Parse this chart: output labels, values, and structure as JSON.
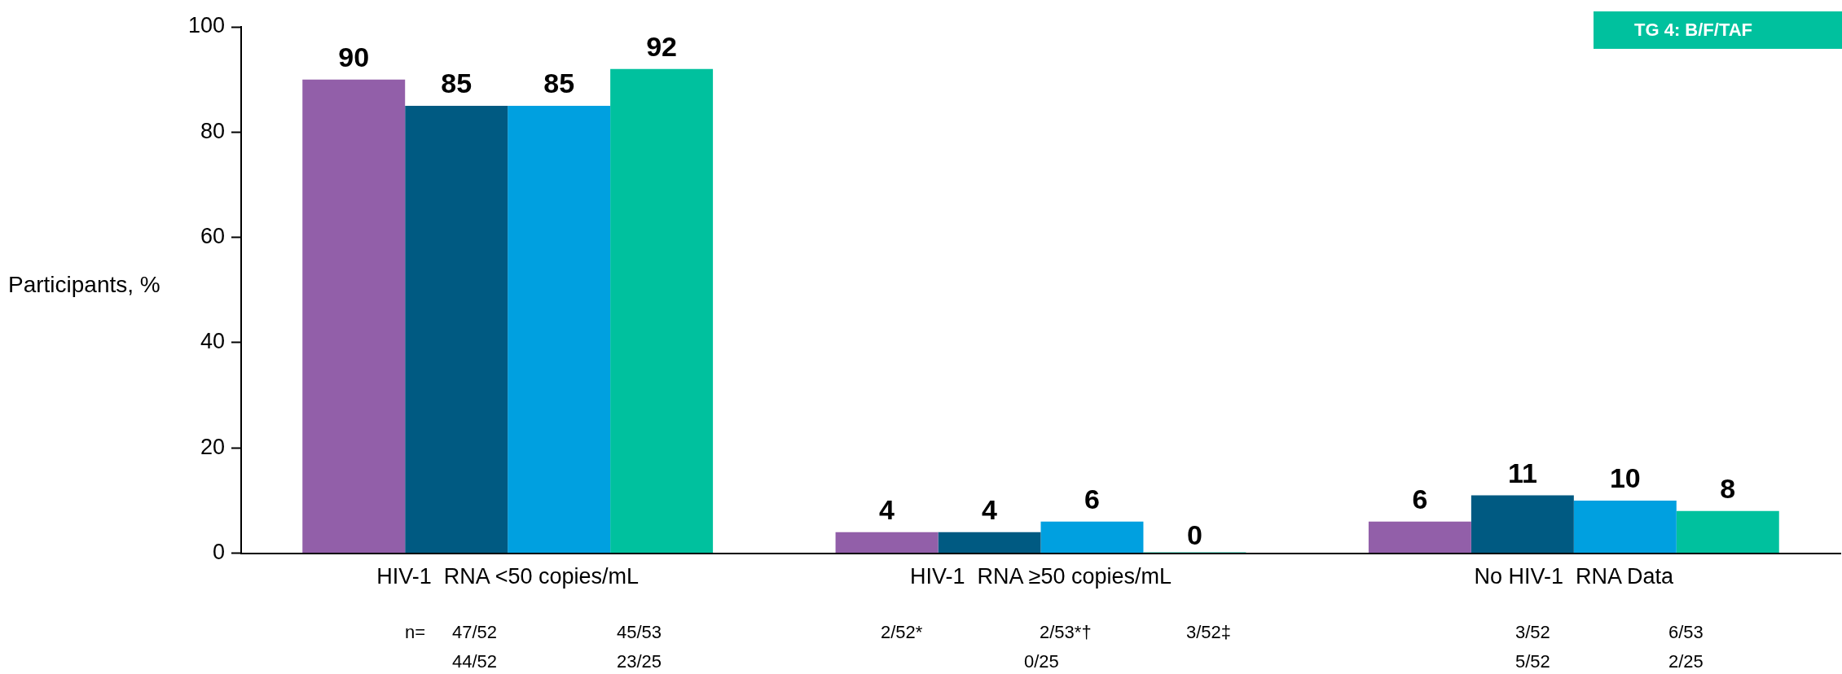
{
  "chart_data": {
    "type": "bar",
    "ylabel": "Participants, %",
    "categories": [
      "HIV-1  RNA <50 copies/mL",
      "HIV-1  RNA ≥50 copies/mL",
      "No HIV-1  RNA Data"
    ],
    "series": [
      {
        "color": "#925fa9",
        "values": [
          90,
          4,
          6
        ]
      },
      {
        "color": "#005a82",
        "values": [
          85,
          4,
          11
        ]
      },
      {
        "color": "#00a0e0",
        "values": [
          85,
          6,
          10
        ]
      },
      {
        "name": "TG 4: B/F/TAF",
        "color": "#00c19e",
        "values": [
          92,
          0,
          8
        ]
      }
    ],
    "ylim": [
      0,
      100
    ],
    "yticks": [
      0,
      20,
      40,
      60,
      80,
      100
    ],
    "grid": false,
    "legend": "top right",
    "data_labels": true,
    "annotations": [
      "n=",
      "47/52",
      "45/53",
      "2/52*",
      "2/53*†",
      "3/52‡",
      "3/52",
      "6/53",
      "44/52",
      "23/25",
      "0/25",
      "5/52",
      "2/25"
    ]
  }
}
